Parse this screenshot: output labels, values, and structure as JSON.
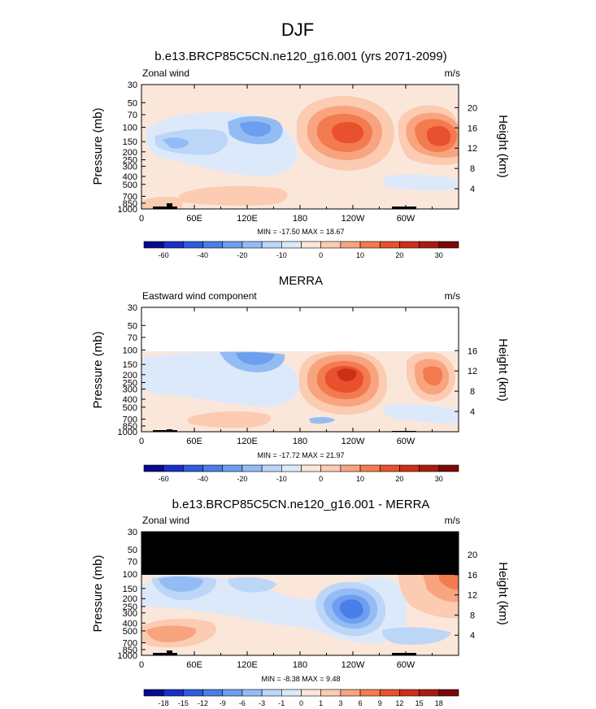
{
  "page": {
    "title": "DJF"
  },
  "colorbars": {
    "full": {
      "colors": [
        "#0a0a8c",
        "#1a2ec8",
        "#2e5cdc",
        "#4a7ee8",
        "#6e9ef0",
        "#94bcf4",
        "#bcd6f8",
        "#dce9fb",
        "#fbe6da",
        "#fbcbb2",
        "#f8a47e",
        "#f47a50",
        "#e8502e",
        "#cc3018",
        "#a81c10",
        "#7a0a06"
      ],
      "labels": [
        "-60",
        "-40",
        "-20",
        "-10",
        "0",
        "10",
        "20",
        "30"
      ],
      "label_boundaries": [
        1,
        3,
        5,
        7,
        9,
        11,
        13,
        15
      ]
    },
    "diff": {
      "colors": [
        "#0a0a8c",
        "#1a2ec8",
        "#2e5cdc",
        "#4a7ee8",
        "#6e9ef0",
        "#94bcf4",
        "#bcd6f8",
        "#dce9fb",
        "#fbe6da",
        "#fbcbb2",
        "#f8a47e",
        "#f47a50",
        "#e8502e",
        "#cc3018",
        "#a81c10",
        "#7a0a06"
      ],
      "labels": [
        "-18",
        "-15",
        "-12",
        "-9",
        "-6",
        "-3",
        "-1",
        "0",
        "1",
        "3",
        "6",
        "9",
        "12",
        "15",
        "18"
      ]
    }
  },
  "panels": [
    {
      "title": "b.e13.BRCP85C5CN.ne120_g16.001 (yrs 2071-2099)",
      "variable": "Zonal wind",
      "units": "m/s",
      "ylabel": "Pressure (mb)",
      "y2label": "Height (km)",
      "xticks": [
        "0",
        "60E",
        "120E",
        "180",
        "120W",
        "60W"
      ],
      "yticks": [
        "30",
        "50",
        "70",
        "100",
        "150",
        "200",
        "250",
        "300",
        "400",
        "500",
        "700",
        "850",
        "1000"
      ],
      "hticks": [
        "20",
        "16",
        "12",
        "8",
        "4"
      ],
      "stats": "MIN = -17.50  MAX = 18.67",
      "data_top": 30,
      "colorbar": "full"
    },
    {
      "title": "MERRA",
      "variable": "Eastward wind component",
      "units": "m/s",
      "ylabel": "Pressure (mb)",
      "y2label": "Height (km)",
      "xticks": [
        "0",
        "60E",
        "120E",
        "180",
        "120W",
        "60W"
      ],
      "yticks": [
        "30",
        "50",
        "70",
        "100",
        "150",
        "200",
        "250",
        "300",
        "400",
        "500",
        "700",
        "850",
        "1000"
      ],
      "hticks": [
        "16",
        "12",
        "8",
        "4"
      ],
      "stats": "MIN = -17.72  MAX = 21.97",
      "data_top": 100,
      "colorbar": "full"
    },
    {
      "title": "b.e13.BRCP85C5CN.ne120_g16.001 - MERRA",
      "variable": "Zonal wind",
      "units": "m/s",
      "ylabel": "Pressure (mb)",
      "y2label": "Height (km)",
      "xticks": [
        "0",
        "60E",
        "120E",
        "180",
        "120W",
        "60W"
      ],
      "yticks": [
        "30",
        "50",
        "70",
        "100",
        "150",
        "200",
        "250",
        "300",
        "400",
        "500",
        "700",
        "850",
        "1000"
      ],
      "hticks": [
        "20",
        "16",
        "12",
        "8",
        "4"
      ],
      "stats": "MIN = -8.38  MAX = 9.48",
      "data_top": 100,
      "colorbar": "diff"
    }
  ],
  "chart_data": [
    {
      "type": "heatmap",
      "title": "b.e13.BRCP85C5CN.ne120_g16.001 (yrs 2071-2099)",
      "subtitle": "Zonal wind",
      "units": "m/s",
      "xlabel": "",
      "ylabel": "Pressure (mb)",
      "y2label": "Height (km)",
      "xlim": [
        0,
        360
      ],
      "ylim": [
        1000,
        30
      ],
      "yscale": "log",
      "min": -17.5,
      "max": 18.67,
      "features": [
        {
          "lon": 145,
          "p": 130,
          "value": 18
        },
        {
          "lon": 235,
          "p": 130,
          "value": 16
        },
        {
          "lon": 300,
          "p": 130,
          "value": 17
        },
        {
          "lon": 40,
          "p": 130,
          "value": -6
        },
        {
          "lon": 80,
          "p": 150,
          "value": -4
        },
        {
          "lon": 110,
          "p": 200,
          "value": -3
        },
        {
          "lon": 170,
          "p": 300,
          "value": -2
        },
        {
          "lon": 120,
          "p": 750,
          "value": 3
        }
      ]
    },
    {
      "type": "heatmap",
      "title": "MERRA",
      "subtitle": "Eastward wind component",
      "units": "m/s",
      "xlabel": "",
      "ylabel": "Pressure (mb)",
      "y2label": "Height (km)",
      "xlim": [
        0,
        360
      ],
      "ylim": [
        1000,
        30
      ],
      "yscale": "log",
      "min": -17.72,
      "max": 21.97,
      "features": [
        {
          "lon": 145,
          "p": 160,
          "value": 22
        },
        {
          "lon": 235,
          "p": 170,
          "value": 14
        },
        {
          "lon": 300,
          "p": 180,
          "value": 14
        },
        {
          "lon": 40,
          "p": 200,
          "value": -3
        },
        {
          "lon": 110,
          "p": 110,
          "value": -8
        },
        {
          "lon": 170,
          "p": 300,
          "value": -2
        },
        {
          "lon": 120,
          "p": 750,
          "value": 3
        }
      ]
    },
    {
      "type": "heatmap",
      "title": "b.e13.BRCP85C5CN.ne120_g16.001 - MERRA",
      "subtitle": "Zonal wind",
      "units": "m/s",
      "xlabel": "",
      "ylabel": "Pressure (mb)",
      "y2label": "Height (km)",
      "xlim": [
        0,
        360
      ],
      "ylim": [
        1000,
        30
      ],
      "yscale": "log",
      "min": -8.38,
      "max": 9.48,
      "features": [
        {
          "lon": 140,
          "p": 230,
          "value": -8
        },
        {
          "lon": 40,
          "p": 140,
          "value": -6
        },
        {
          "lon": 105,
          "p": 150,
          "value": -6
        },
        {
          "lon": 170,
          "p": 130,
          "value": 3
        },
        {
          "lon": 235,
          "p": 150,
          "value": 3
        },
        {
          "lon": 300,
          "p": 120,
          "value": 5
        },
        {
          "lon": 120,
          "p": 700,
          "value": 3
        },
        {
          "lon": 20,
          "p": 700,
          "value": 3
        }
      ]
    }
  ]
}
